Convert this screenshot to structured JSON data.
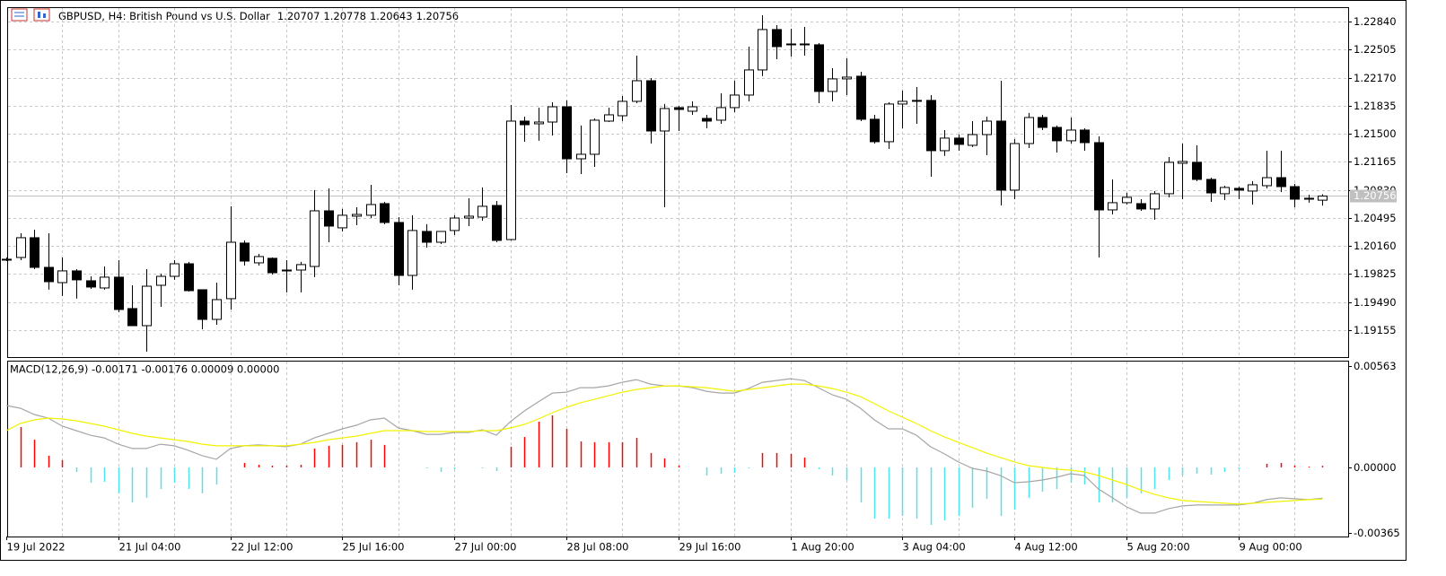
{
  "chart_data": [
    {
      "type": "candlestick",
      "title": "GBPUSD, H4:  British Pound vs U.S. Dollar",
      "categories": [
        "19 Jul 2022",
        null,
        null,
        null,
        null,
        null,
        null,
        null,
        "21 Jul 04:00",
        null,
        null,
        null,
        null,
        null,
        null,
        null,
        "22 Jul 12:00",
        null,
        null,
        null,
        null,
        null,
        null,
        null,
        "25 Jul 16:00",
        null,
        null,
        null,
        null,
        null,
        null,
        null,
        "27 Jul 00:00",
        null,
        null,
        null,
        null,
        null,
        null,
        null,
        "28 Jul 08:00",
        null,
        null,
        null,
        null,
        null,
        null,
        null,
        "29 Jul 16:00",
        null,
        null,
        null,
        null,
        null,
        null,
        null,
        "1 Aug 20:00",
        null,
        null,
        null,
        null,
        null,
        null,
        null,
        "3 Aug 04:00",
        null,
        null,
        null,
        null,
        null,
        null,
        null,
        "4 Aug 12:00",
        null,
        null,
        null,
        null,
        null,
        null,
        null,
        "5 Aug 20:00",
        null,
        null,
        null,
        null,
        null,
        null,
        null,
        "9 Aug 00:00",
        null,
        null,
        null,
        null,
        null,
        null
      ],
      "open": [
        1.20002,
        1.20023,
        1.20259,
        1.19905,
        1.19723,
        1.19863,
        1.19745,
        1.19659,
        1.19788,
        1.19413,
        1.19209,
        1.19691,
        1.19798,
        1.19948,
        1.19638,
        1.19284,
        1.19531,
        1.20195,
        1.19959,
        1.20013,
        1.19873,
        1.19873,
        1.19916,
        1.2058,
        1.20377,
        1.20516,
        1.20527,
        1.20666,
        1.20441,
        1.19809,
        1.20334,
        1.20205,
        1.20345,
        1.20494,
        1.20505,
        1.20644,
        1.20237,
        1.21651,
        1.21619,
        1.2164,
        1.21822,
        1.21201,
        1.21255,
        1.21651,
        1.21715,
        1.21887,
        1.22133,
        1.21533,
        1.21812,
        1.21769,
        1.21683,
        1.21662,
        1.21812,
        1.21962,
        1.22262,
        1.22744,
        1.22572,
        1.22572,
        1.22562,
        1.22005,
        1.22155,
        1.22187,
        1.21673,
        1.21405,
        1.21855,
        1.21898,
        1.21898,
        1.21298,
        1.21448,
        1.21362,
        1.2149,
        1.21651,
        1.20827,
        1.21383,
        1.21694,
        1.21576,
        1.21416,
        1.21544,
        1.21394,
        1.20591,
        1.20677,
        1.20666,
        1.20602,
        1.20784,
        1.21148,
        1.21159,
        1.20955,
        1.20784,
        1.20848,
        1.20816,
        1.2088,
        1.20976,
        1.20869,
        1.2073,
        1.20707
      ],
      "high": [
        1.20023,
        1.20312,
        1.20355,
        1.20312,
        1.20023,
        1.19884,
        1.19798,
        1.19916,
        1.19991,
        1.19691,
        1.19884,
        1.1983,
        1.19991,
        1.1997,
        1.19638,
        1.19723,
        1.20634,
        1.20227,
        1.20066,
        1.20023,
        1.19991,
        1.1997,
        1.20827,
        1.20848,
        1.20602,
        1.20623,
        1.20891,
        1.20687,
        1.20505,
        1.20527,
        1.2042,
        1.20334,
        1.20527,
        1.2073,
        1.20859,
        1.20698,
        1.21844,
        1.21705,
        1.21812,
        1.21876,
        1.21898,
        1.21598,
        1.21683,
        1.21812,
        1.21951,
        1.22433,
        1.22165,
        1.21855,
        1.21833,
        1.21887,
        1.21726,
        1.21983,
        1.22133,
        1.2254,
        1.22915,
        1.22797,
        1.22754,
        1.22776,
        1.22583,
        1.22283,
        1.22401,
        1.2224,
        1.21726,
        1.21876,
        1.22015,
        1.22058,
        1.21962,
        1.21544,
        1.2149,
        1.21651,
        1.21705,
        1.22133,
        1.21437,
        1.21748,
        1.21726,
        1.21598,
        1.21694,
        1.21565,
        1.21469,
        1.20955,
        1.20794,
        1.20719,
        1.20816,
        1.21223,
        1.21383,
        1.21362,
        1.20976,
        1.2088,
        1.20869,
        1.20934,
        1.21298,
        1.21298,
        1.20901,
        1.20773,
        1.20778
      ],
      "low": [
        1.1998,
        1.19991,
        1.19884,
        1.19638,
        1.19563,
        1.19531,
        1.19648,
        1.19638,
        1.1937,
        1.19209,
        1.18899,
        1.19434,
        1.19756,
        1.19616,
        1.19166,
        1.1922,
        1.19402,
        1.19927,
        1.19927,
        1.1982,
        1.19606,
        1.19606,
        1.19788,
        1.20205,
        1.20334,
        1.20409,
        1.20494,
        1.2042,
        1.19691,
        1.19638,
        1.20141,
        1.20184,
        1.20291,
        1.20398,
        1.20462,
        1.20205,
        1.20227,
        1.21405,
        1.21416,
        1.2148,
        1.2103,
        1.21019,
        1.21105,
        1.2164,
        1.21651,
        1.21865,
        1.21383,
        1.20623,
        1.21533,
        1.21726,
        1.21565,
        1.21619,
        1.21758,
        1.21887,
        1.22187,
        1.2239,
        1.22422,
        1.22433,
        1.21865,
        1.21887,
        1.21962,
        1.21651,
        1.21383,
        1.21319,
        1.21565,
        1.21619,
        1.20987,
        1.21234,
        1.21298,
        1.21341,
        1.21244,
        1.20644,
        1.20719,
        1.2133,
        1.21544,
        1.21276,
        1.21383,
        1.21298,
        1.20023,
        1.20537,
        1.20655,
        1.2058,
        1.20473,
        1.20741,
        1.20719,
        1.20934,
        1.20687,
        1.20709,
        1.20719,
        1.20655,
        1.20848,
        1.20805,
        1.20623,
        1.20677,
        1.20643
      ],
      "close": [
        1.20002,
        1.20259,
        1.19905,
        1.19734,
        1.19863,
        1.19756,
        1.1967,
        1.19788,
        1.19402,
        1.19209,
        1.1968,
        1.19798,
        1.19948,
        1.19627,
        1.19284,
        1.1952,
        1.20205,
        1.1998,
        1.20034,
        1.19841,
        1.19863,
        1.19938,
        1.2058,
        1.20398,
        1.20527,
        1.20537,
        1.20655,
        1.20441,
        1.19809,
        1.20345,
        1.20205,
        1.20334,
        1.20494,
        1.20516,
        1.20634,
        1.20227,
        1.21651,
        1.21608,
        1.2164,
        1.21822,
        1.21201,
        1.21255,
        1.21662,
        1.21726,
        1.21887,
        1.22133,
        1.21533,
        1.21801,
        1.2179,
        1.21822,
        1.21651,
        1.21812,
        1.21962,
        1.22262,
        1.22744,
        1.2254,
        1.22572,
        1.22572,
        1.22005,
        1.22155,
        1.22176,
        1.21673,
        1.21405,
        1.21855,
        1.21887,
        1.21898,
        1.21298,
        1.21448,
        1.21373,
        1.2149,
        1.21651,
        1.20827,
        1.21383,
        1.21694,
        1.21576,
        1.21416,
        1.21544,
        1.21394,
        1.20591,
        1.20677,
        1.20741,
        1.20602,
        1.20784,
        1.21159,
        1.21169,
        1.20955,
        1.20794,
        1.20859,
        1.20827,
        1.20891,
        1.20976,
        1.20869,
        1.20719,
        1.20719,
        1.20756
      ],
      "up_color": "#ffffff",
      "down_color": "#000000",
      "outline_color": "#000000",
      "ylim": [
        1.18834,
        1.23011
      ],
      "yticks": [
        {
          "value": 1.2284,
          "label": "1.22840"
        },
        1.22505,
        {
          "value": 1.2217,
          "label": "1.22170"
        },
        1.21835,
        {
          "value": 1.215,
          "label": "1.21500"
        },
        1.21165,
        {
          "value": 1.2083,
          "label": "1.20830"
        },
        1.20495,
        {
          "value": 1.2016,
          "label": "1.20160"
        },
        1.19825,
        {
          "value": 1.1949,
          "label": "1.19490"
        },
        1.19155
      ],
      "grid": true
    },
    {
      "type": "macd",
      "title": "MACD(12,26,9) -0.00171 -0.00176 0.00009 0.00000",
      "histogram": [
        null,
        0.00224,
        0.00154,
        0.00065,
        0.0004,
        -0.00025,
        -0.00085,
        -0.0008,
        -0.00144,
        -0.00194,
        -0.00169,
        -0.0012,
        -0.00085,
        -0.0012,
        -0.00144,
        -0.00095,
        0,
        0.00025,
        0.00015,
        0.0001,
        0.0001,
        0.00015,
        0.00105,
        0.0012,
        0.00125,
        0.0014,
        0.00154,
        0.00125,
        0,
        0,
        -5e-05,
        -0.00025,
        -0.0001,
        0,
        -5e-05,
        -0.0002,
        0.00115,
        0.00169,
        0.00254,
        0.00289,
        0.00214,
        0.00144,
        0.0014,
        0.0014,
        0.0014,
        0.00164,
        0.0008,
        0.0005,
        0.0001,
        0,
        -0.00045,
        -0.00035,
        -0.0003,
        -5e-05,
        0.0008,
        0.0008,
        0.00075,
        0.00055,
        -0.0001,
        -0.00045,
        -0.0007,
        -0.00194,
        -0.00284,
        -0.00284,
        -0.00269,
        -0.00284,
        -0.00319,
        -0.00294,
        -0.00269,
        -0.00224,
        -0.00174,
        -0.00269,
        -0.00234,
        -0.00169,
        -0.00135,
        -0.0012,
        -0.00085,
        -0.00095,
        -0.00194,
        -0.00194,
        -0.00169,
        -0.00144,
        -0.0012,
        -0.0007,
        -0.00045,
        -0.00035,
        -0.0004,
        -0.00025,
        -0.0001,
        0,
        0.0002,
        0.00025,
        0.0001,
        5e-05,
        9e-05
      ],
      "positive_color": "#ff0000",
      "negative_color": "#4fe3ea",
      "series": [
        {
          "color": "#a6a6a6",
          "values": [
            0.00344,
            0.00329,
            0.00294,
            0.00274,
            0.00229,
            0.00204,
            0.00179,
            0.00164,
            0.00129,
            0.00105,
            0.00105,
            0.00129,
            0.0012,
            0.00095,
            0.00065,
            0.00045,
            0.00105,
            0.0012,
            0.00125,
            0.0012,
            0.00115,
            0.00129,
            0.00164,
            0.00189,
            0.00214,
            0.00234,
            0.00264,
            0.00274,
            0.00219,
            0.00204,
            0.00184,
            0.00184,
            0.00194,
            0.00194,
            0.00209,
            0.00179,
            0.00254,
            0.00314,
            0.00364,
            0.00413,
            0.00418,
            0.00443,
            0.00443,
            0.00453,
            0.00473,
            0.00488,
            0.00463,
            0.00453,
            0.00453,
            0.00443,
            0.00423,
            0.00413,
            0.00413,
            0.00438,
            0.00473,
            0.00483,
            0.00493,
            0.00483,
            0.00443,
            0.00403,
            0.00378,
            0.00329,
            0.00264,
            0.00214,
            0.00214,
            0.00179,
            0.00115,
            0.00075,
            0.0003,
            -5e-05,
            -0.0002,
            -0.00045,
            -0.00085,
            -0.0008,
            -0.0007,
            -0.00055,
            -0.00035,
            -0.00045,
            -0.0012,
            -0.00169,
            -0.00219,
            -0.00254,
            -0.00254,
            -0.00229,
            -0.00214,
            -0.00209,
            -0.00209,
            -0.00209,
            -0.00209,
            -0.00199,
            -0.00179,
            -0.00169,
            -0.00174,
            -0.00179,
            -0.00171
          ]
        },
        {
          "color": "#f2f200",
          "values": [
            0.00204,
            0.00244,
            0.00264,
            0.00274,
            0.00269,
            0.00259,
            0.00244,
            0.00229,
            0.00209,
            0.00189,
            0.00174,
            0.00164,
            0.00154,
            0.00144,
            0.00129,
            0.0012,
            0.0012,
            0.0012,
            0.0012,
            0.0012,
            0.0012,
            0.00129,
            0.00139,
            0.00154,
            0.00164,
            0.00174,
            0.00189,
            0.00204,
            0.00204,
            0.00204,
            0.00199,
            0.00199,
            0.00199,
            0.00199,
            0.00204,
            0.00204,
            0.00219,
            0.00239,
            0.00269,
            0.00304,
            0.00334,
            0.00359,
            0.00378,
            0.00398,
            0.00418,
            0.00433,
            0.00443,
            0.00453,
            0.00453,
            0.00448,
            0.00443,
            0.00433,
            0.00423,
            0.00433,
            0.00443,
            0.00453,
            0.00463,
            0.00463,
            0.00453,
            0.00438,
            0.00418,
            0.00393,
            0.00354,
            0.00314,
            0.00279,
            0.00244,
            0.00204,
            0.00169,
            0.00139,
            0.0011,
            0.0008,
            0.00055,
            0.0003,
            0.0001,
            0,
            -0.0001,
            -0.00015,
            -0.00025,
            -0.00045,
            -0.0007,
            -0.00095,
            -0.00125,
            -0.00149,
            -0.00169,
            -0.00184,
            -0.00189,
            -0.00194,
            -0.00199,
            -0.00204,
            -0.00199,
            -0.00194,
            -0.00189,
            -0.00184,
            -0.00179,
            -0.00176
          ]
        }
      ],
      "ylim": [
        -0.00384,
        0.00593
      ],
      "yticks": [
        0.00563,
        {
          "value": 0,
          "label": "0.00000"
        },
        -0.00365
      ]
    }
  ]
}
